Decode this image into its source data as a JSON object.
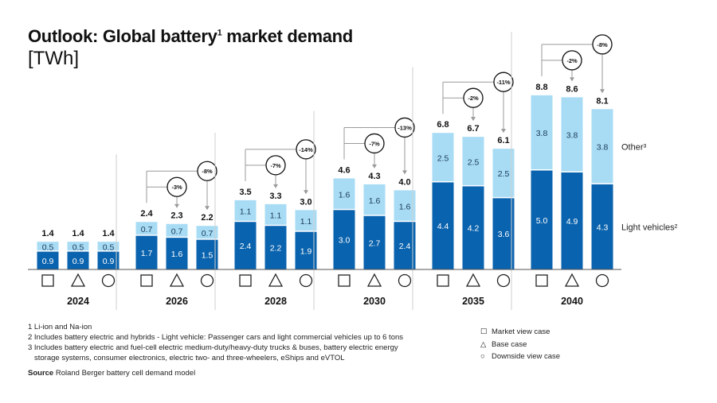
{
  "title": "Outlook: Global battery",
  "title_sup": "1",
  "title_rest": " market demand",
  "unit": "[TWh]",
  "chart_data": {
    "type": "bar",
    "stacked": true,
    "categories": [
      "2024",
      "2026",
      "2028",
      "2030",
      "2035",
      "2040"
    ],
    "cases": [
      "Market view case",
      "Base case",
      "Downside view case"
    ],
    "case_symbols": [
      "square",
      "triangle",
      "circle"
    ],
    "series": [
      {
        "name": "Light vehicles²",
        "color": "#0a63ae",
        "values": [
          [
            0.9,
            0.9,
            0.9
          ],
          [
            1.7,
            1.6,
            1.5
          ],
          [
            2.4,
            2.2,
            1.9
          ],
          [
            3.0,
            2.7,
            2.4
          ],
          [
            4.4,
            4.2,
            3.6
          ],
          [
            5.0,
            4.9,
            4.3
          ]
        ]
      },
      {
        "name": "Other³",
        "color": "#a8dcf5",
        "values": [
          [
            0.5,
            0.5,
            0.5
          ],
          [
            0.7,
            0.7,
            0.7
          ],
          [
            1.1,
            1.1,
            1.1
          ],
          [
            1.6,
            1.6,
            1.6
          ],
          [
            2.5,
            2.5,
            2.5
          ],
          [
            3.8,
            3.8,
            3.8
          ]
        ]
      }
    ],
    "totals": [
      [
        "1.4",
        "1.4",
        "1.4"
      ],
      [
        "2.4",
        "2.3",
        "2.2"
      ],
      [
        "3.5",
        "3.3",
        "3.0"
      ],
      [
        "4.6",
        "4.3",
        "4.0"
      ],
      [
        "6.8",
        "6.7",
        "6.1"
      ],
      [
        "8.8",
        "8.6",
        "8.1"
      ]
    ],
    "segment_labels": {
      "light": [
        [
          "0.9",
          "0.9",
          "0.9"
        ],
        [
          "1.7",
          "1.6",
          "1.5"
        ],
        [
          "2.4",
          "2.2",
          "1.9"
        ],
        [
          "3.0",
          "2.7",
          "2.4"
        ],
        [
          "4.4",
          "4.2",
          "3.6"
        ],
        [
          "5.0",
          "4.9",
          "4.3"
        ]
      ],
      "other": [
        [
          "0.5",
          "0.5",
          "0.5"
        ],
        [
          "0.7",
          "0.7",
          "0.7"
        ],
        [
          "1.1",
          "1.1",
          "1.1"
        ],
        [
          "1.6",
          "1.6",
          "1.6"
        ],
        [
          "2.5",
          "2.5",
          "2.5"
        ],
        [
          "3.8",
          "3.8",
          "3.8"
        ]
      ]
    },
    "deltas_vs_market": [
      null,
      [
        "-3%",
        "-8%"
      ],
      [
        "-7%",
        "-14%"
      ],
      [
        "-7%",
        "-13%"
      ],
      [
        "-2%",
        "-11%"
      ],
      [
        "-2%",
        "-8%"
      ]
    ],
    "ylim": [
      0,
      9
    ],
    "grid": false,
    "legend_placement": "right"
  },
  "series_labels": {
    "other": "Other³",
    "light": "Light vehicles²"
  },
  "footnotes": [
    "1 Li-ion and Na-ion",
    "2 Includes battery electric and hybrids - Light vehicle: Passenger cars and light commercial vehicles up to 6 tons",
    "3 Includes battery electric and fuel-cell electric medium-duty/heavy-duty trucks & buses, battery electric energy",
    "storage systems, consumer electronics, electric two- and three-wheelers, eShips and eVTOL"
  ],
  "source_label": "Source",
  "source_text": " Roland Berger battery cell demand model",
  "legend": [
    {
      "icon": "square-icon",
      "glyph": "☐",
      "label": "Market view case"
    },
    {
      "icon": "triangle-icon",
      "glyph": "△",
      "label": "Base case"
    },
    {
      "icon": "circle-icon",
      "glyph": "○",
      "label": "Downside view case"
    }
  ]
}
